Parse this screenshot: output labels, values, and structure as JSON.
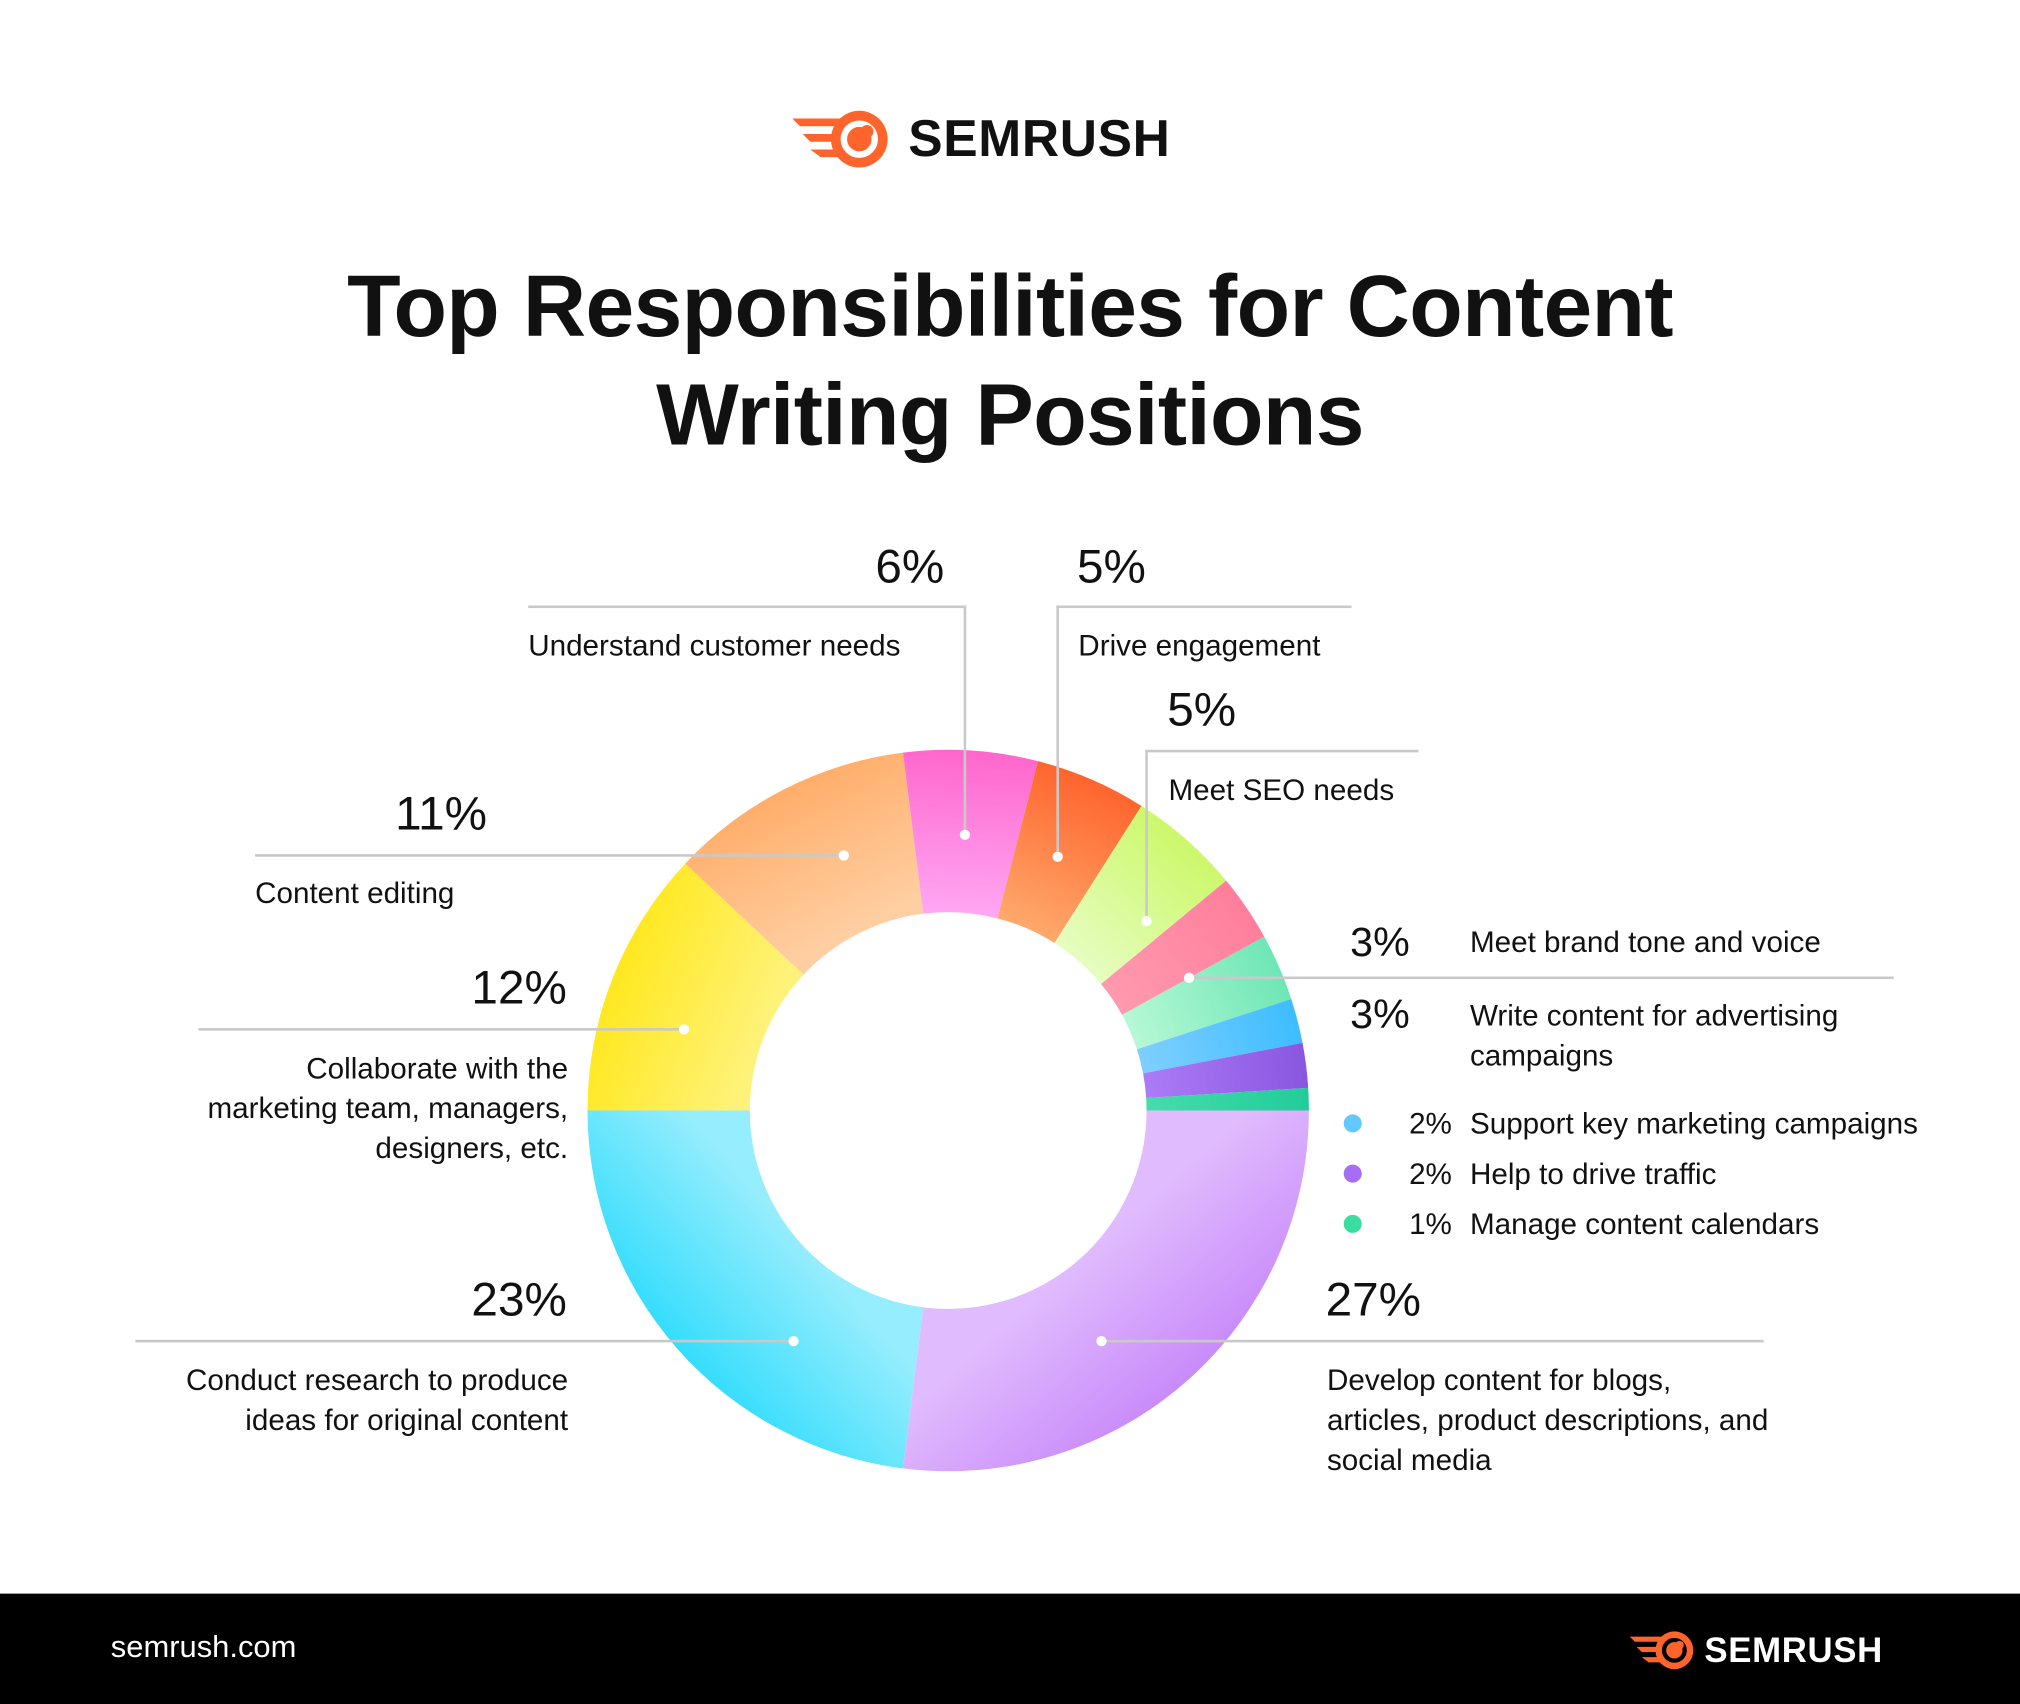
{
  "logo": {
    "text": "SEMRUSH",
    "color": "#FF642D"
  },
  "title_lines": [
    "Top Responsibilities for Content",
    "Writing Positions"
  ],
  "footer": {
    "url": "semrush.com",
    "logo_text": "SEMRUSH"
  },
  "chart_data": {
    "type": "pie",
    "variant": "donut",
    "title": "Top Responsibilities for Content Writing Positions",
    "unit": "%",
    "slices": [
      {
        "label": "Develop content for blogs, articles, product descriptions, and social media",
        "value": 27,
        "pct_label": "27%",
        "color": "#C98BFA",
        "color2": "#E0BBFD"
      },
      {
        "label": "Conduct research to produce ideas for original content",
        "value": 23,
        "pct_label": "23%",
        "color": "#35DDFD",
        "color2": "#95EDFD"
      },
      {
        "label": "Collaborate with the marketing team, managers, designers, etc.",
        "value": 12,
        "pct_label": "12%",
        "color": "#FFE81F",
        "color2": "#FFF27A"
      },
      {
        "label": "Content editing",
        "value": 11,
        "pct_label": "11%",
        "color": "#FFAE6B",
        "color2": "#FFCFA3"
      },
      {
        "label": "Understand customer needs",
        "value": 6,
        "pct_label": "6%",
        "color": "#FF66CC",
        "color2": "#FFA6F2"
      },
      {
        "label": "Drive engagement",
        "value": 5,
        "pct_label": "5%",
        "color": "#FF642D",
        "color2": "#FFA86B"
      },
      {
        "label": "Meet SEO needs",
        "value": 5,
        "pct_label": "5%",
        "color": "#CCF86A",
        "color2": "#E6FDC0"
      },
      {
        "label": "Meet brand tone and voice",
        "value": 3,
        "pct_label": "3%",
        "color": "#FF7E9B",
        "color2": "#FF9AAE"
      },
      {
        "label": "Write content for advertising campaigns",
        "value": 3,
        "pct_label": "3%",
        "color": "#6EE6B5",
        "color2": "#B6F8D6"
      },
      {
        "label": "Support key marketing campaigns",
        "value": 2,
        "pct_label": "2%",
        "color": "#3DBDFF",
        "color2": "#7FCFFF"
      },
      {
        "label": "Help to drive traffic",
        "value": 2,
        "pct_label": "2%",
        "color": "#8A56E0",
        "color2": "#AC7BF7"
      },
      {
        "label": "Manage content calendars",
        "value": 1,
        "pct_label": "1%",
        "color": "#22CC99",
        "color2": "#44DDAA"
      }
    ],
    "start_angle": "3 o'clock, clockwise",
    "legend": [
      {
        "pct": "2%",
        "label": "Support key marketing campaigns",
        "color": "#62C8FF"
      },
      {
        "pct": "2%",
        "label": "Help to drive traffic",
        "color": "#A56EF5"
      },
      {
        "pct": "1%",
        "label": "Manage content calendars",
        "color": "#3ADDA0"
      }
    ]
  }
}
